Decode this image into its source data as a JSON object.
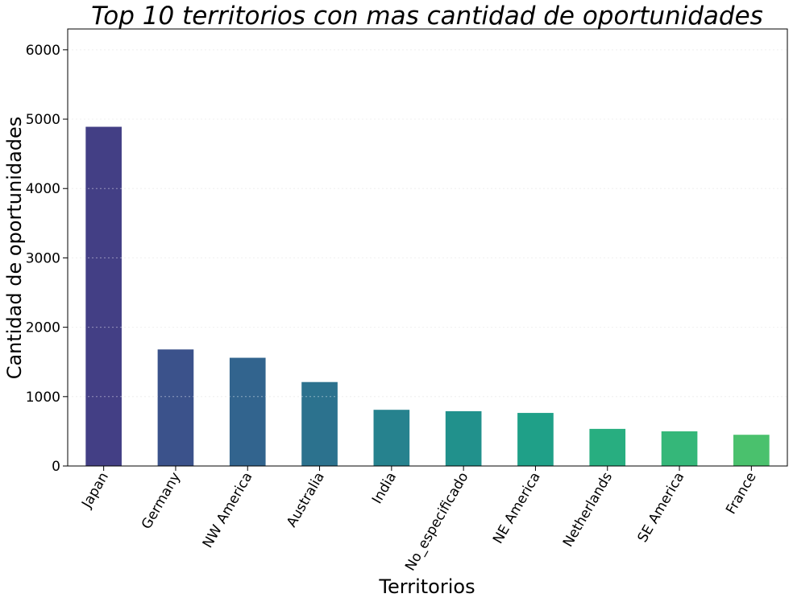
{
  "chart_data": {
    "type": "bar",
    "title": "Top 10 territorios con mas cantidad de oportunidades",
    "xlabel": "Territorios",
    "ylabel": "Cantidad de oportunidades",
    "categories": [
      "Japan",
      "Germany",
      "NW America",
      "Australia",
      "India",
      "No_especificado",
      "NE America",
      "Netherlands",
      "SE America",
      "France"
    ],
    "values": [
      4890,
      1680,
      1560,
      1210,
      810,
      790,
      765,
      535,
      500,
      450
    ],
    "ylim": [
      0,
      6300
    ],
    "yticks": [
      "0",
      "1000",
      "2000",
      "3000",
      "4000",
      "5000",
      "6000"
    ],
    "grid": true,
    "colors": [
      "#433f85",
      "#3b528b",
      "#32648e",
      "#2c728e",
      "#26828e",
      "#21918c",
      "#1fa088",
      "#28ae80",
      "#35b779",
      "#4ac16d"
    ]
  }
}
